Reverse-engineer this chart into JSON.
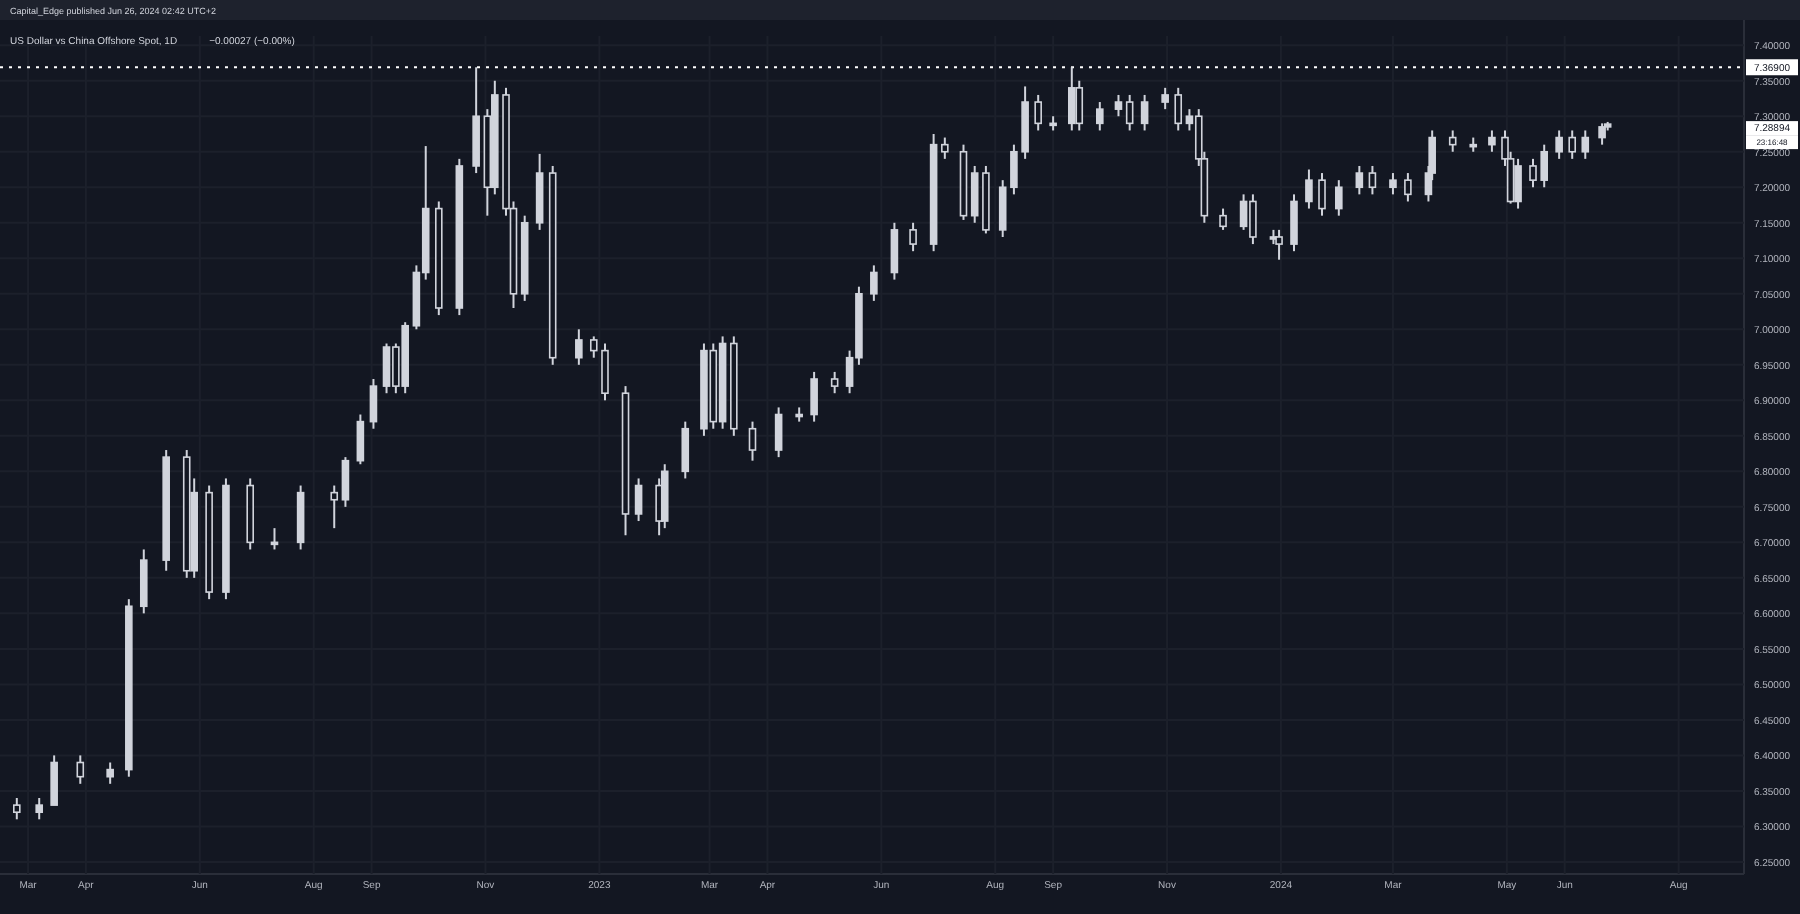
{
  "chart_data": {
    "type": "candlestick",
    "title": "US Dollar vs China Offshore Spot, 1D",
    "subtitle": "−0.00027 (−0.00%)",
    "color": "#d1d4dc",
    "grid": true,
    "annotations": [
      "Capital_Edge published Jun 26, 2024 02:42 UTC+2",
      "7.28894",
      "23:16:48"
    ],
    "ref_lines": [
      {
        "axis": "y",
        "value": 7.369,
        "label": "7.36900",
        "line_style": "dotted",
        "color": "#ffffff"
      }
    ],
    "xlim": [
      "2022-02-14",
      "2024-09-05"
    ],
    "xticks": [
      {
        "value": "2022-03-01",
        "label": "Mar"
      },
      {
        "value": "2022-04-01",
        "label": "Apr"
      },
      {
        "value": "2022-06-01",
        "label": "Jun"
      },
      {
        "value": "2022-08-01",
        "label": "Aug"
      },
      {
        "value": "2022-09-01",
        "label": "Sep"
      },
      {
        "value": "2022-11-01",
        "label": "Nov"
      },
      {
        "value": "2023-01-01",
        "label": "2023"
      },
      {
        "value": "2023-03-01",
        "label": "Mar"
      },
      {
        "value": "2023-04-01",
        "label": "Apr"
      },
      {
        "value": "2023-06-01",
        "label": "Jun"
      },
      {
        "value": "2023-08-01",
        "label": "Aug"
      },
      {
        "value": "2023-09-01",
        "label": "Sep"
      },
      {
        "value": "2023-11-01",
        "label": "Nov"
      },
      {
        "value": "2024-01-01",
        "label": "2024"
      },
      {
        "value": "2024-03-01",
        "label": "Mar"
      },
      {
        "value": "2024-05-01",
        "label": "May"
      },
      {
        "value": "2024-06-01",
        "label": "Jun"
      },
      {
        "value": "2024-08-01",
        "label": "Aug"
      }
    ],
    "ylim": [
      6.233,
      7.413
    ],
    "yticks": [
      {
        "value": 6.25,
        "label": "6.25000"
      },
      {
        "value": 6.3,
        "label": "6.30000"
      },
      {
        "value": 6.35,
        "label": "6.35000"
      },
      {
        "value": 6.4,
        "label": "6.40000"
      },
      {
        "value": 6.45,
        "label": "6.45000"
      },
      {
        "value": 6.5,
        "label": "6.50000"
      },
      {
        "value": 6.55,
        "label": "6.55000"
      },
      {
        "value": 6.6,
        "label": "6.60000"
      },
      {
        "value": 6.65,
        "label": "6.65000"
      },
      {
        "value": 6.7,
        "label": "6.70000"
      },
      {
        "value": 6.75,
        "label": "6.75000"
      },
      {
        "value": 6.8,
        "label": "6.80000"
      },
      {
        "value": 6.85,
        "label": "6.85000"
      },
      {
        "value": 6.9,
        "label": "6.90000"
      },
      {
        "value": 6.95,
        "label": "6.95000"
      },
      {
        "value": 7.0,
        "label": "7.00000"
      },
      {
        "value": 7.05,
        "label": "7.05000"
      },
      {
        "value": 7.1,
        "label": "7.10000"
      },
      {
        "value": 7.15,
        "label": "7.15000"
      },
      {
        "value": 7.2,
        "label": "7.20000"
      },
      {
        "value": 7.25,
        "label": "7.25000"
      },
      {
        "value": 7.3,
        "label": "7.30000"
      },
      {
        "value": 7.35,
        "label": "7.35000"
      },
      {
        "value": 7.4,
        "label": "7.40000"
      }
    ],
    "x": [
      "2022-02-23",
      "2022-03-07",
      "2022-03-15",
      "2022-03-29",
      "2022-04-14",
      "2022-04-24",
      "2022-05-02",
      "2022-05-14",
      "2022-05-25",
      "2022-05-29",
      "2022-06-06",
      "2022-06-15",
      "2022-06-28",
      "2022-07-11",
      "2022-07-25",
      "2022-08-12",
      "2022-08-18",
      "2022-08-26",
      "2022-09-02",
      "2022-09-09",
      "2022-09-14",
      "2022-09-19",
      "2022-09-25",
      "2022-09-30",
      "2022-10-07",
      "2022-10-18",
      "2022-10-27",
      "2022-11-02",
      "2022-11-06",
      "2022-11-12",
      "2022-11-16",
      "2022-11-22",
      "2022-11-30",
      "2022-12-07",
      "2022-12-21",
      "2022-12-29",
      "2023-01-04",
      "2023-01-15",
      "2023-01-22",
      "2023-02-02",
      "2023-02-05",
      "2023-02-16",
      "2023-02-26",
      "2023-03-03",
      "2023-03-08",
      "2023-03-14",
      "2023-03-24",
      "2023-04-07",
      "2023-04-18",
      "2023-04-26",
      "2023-05-07",
      "2023-05-15",
      "2023-05-20",
      "2023-05-28",
      "2023-06-08",
      "2023-06-18",
      "2023-06-29",
      "2023-07-05",
      "2023-07-15",
      "2023-07-21",
      "2023-07-27",
      "2023-08-05",
      "2023-08-11",
      "2023-08-17",
      "2023-08-24",
      "2023-09-01",
      "2023-09-11",
      "2023-09-15",
      "2023-09-26",
      "2023-10-06",
      "2023-10-12",
      "2023-10-20",
      "2023-10-31",
      "2023-11-07",
      "2023-11-13",
      "2023-11-18",
      "2023-11-21",
      "2023-12-01",
      "2023-12-12",
      "2023-12-17",
      "2023-12-28",
      "2023-12-31",
      "2024-01-08",
      "2024-01-16",
      "2024-01-23",
      "2024-02-01",
      "2024-02-12",
      "2024-02-19",
      "2024-03-01",
      "2024-03-09",
      "2024-03-20",
      "2024-03-22",
      "2024-04-02",
      "2024-04-13",
      "2024-04-23",
      "2024-04-30",
      "2024-05-03",
      "2024-05-07",
      "2024-05-15",
      "2024-05-21",
      "2024-05-29",
      "2024-06-05",
      "2024-06-12",
      "2024-06-21",
      "2024-06-24"
    ],
    "ohlc": [
      [
        6.33,
        6.34,
        6.31,
        6.32
      ],
      [
        6.32,
        6.34,
        6.31,
        6.33
      ],
      [
        6.33,
        6.4,
        6.33,
        6.39
      ],
      [
        6.39,
        6.4,
        6.36,
        6.37
      ],
      [
        6.37,
        6.39,
        6.36,
        6.38
      ],
      [
        6.38,
        6.62,
        6.37,
        6.61
      ],
      [
        6.61,
        6.69,
        6.6,
        6.675
      ],
      [
        6.675,
        6.83,
        6.66,
        6.82
      ],
      [
        6.82,
        6.83,
        6.65,
        6.66
      ],
      [
        6.66,
        6.79,
        6.65,
        6.77
      ],
      [
        6.77,
        6.78,
        6.62,
        6.63
      ],
      [
        6.63,
        6.79,
        6.62,
        6.78
      ],
      [
        6.78,
        6.79,
        6.69,
        6.7
      ],
      [
        6.7,
        6.72,
        6.69,
        6.7
      ],
      [
        6.7,
        6.78,
        6.69,
        6.77
      ],
      [
        6.77,
        6.78,
        6.72,
        6.76
      ],
      [
        6.76,
        6.82,
        6.75,
        6.815
      ],
      [
        6.815,
        6.88,
        6.81,
        6.87
      ],
      [
        6.87,
        6.93,
        6.86,
        6.92
      ],
      [
        6.92,
        6.98,
        6.91,
        6.975
      ],
      [
        6.975,
        6.98,
        6.91,
        6.92
      ],
      [
        6.92,
        7.01,
        6.91,
        7.005
      ],
      [
        7.005,
        7.09,
        7.0,
        7.08
      ],
      [
        7.08,
        7.258,
        7.07,
        7.17
      ],
      [
        7.17,
        7.18,
        7.02,
        7.03
      ],
      [
        7.03,
        7.24,
        7.02,
        7.23
      ],
      [
        7.23,
        7.369,
        7.22,
        7.3
      ],
      [
        7.3,
        7.31,
        7.16,
        7.2
      ],
      [
        7.2,
        7.35,
        7.19,
        7.33
      ],
      [
        7.33,
        7.34,
        7.16,
        7.17
      ],
      [
        7.17,
        7.18,
        7.03,
        7.05
      ],
      [
        7.05,
        7.16,
        7.04,
        7.15
      ],
      [
        7.15,
        7.247,
        7.14,
        7.22
      ],
      [
        7.22,
        7.23,
        6.95,
        6.96
      ],
      [
        6.96,
        7.0,
        6.95,
        6.985
      ],
      [
        6.985,
        6.99,
        6.96,
        6.97
      ],
      [
        6.97,
        6.98,
        6.9,
        6.91
      ],
      [
        6.91,
        6.92,
        6.71,
        6.74
      ],
      [
        6.74,
        6.79,
        6.73,
        6.78
      ],
      [
        6.78,
        6.79,
        6.71,
        6.73
      ],
      [
        6.73,
        6.81,
        6.72,
        6.8
      ],
      [
        6.8,
        6.87,
        6.79,
        6.86
      ],
      [
        6.86,
        6.98,
        6.85,
        6.97
      ],
      [
        6.97,
        6.98,
        6.86,
        6.87
      ],
      [
        6.87,
        6.99,
        6.86,
        6.98
      ],
      [
        6.98,
        6.99,
        6.85,
        6.86
      ],
      [
        6.86,
        6.87,
        6.815,
        6.83
      ],
      [
        6.83,
        6.89,
        6.82,
        6.88
      ],
      [
        6.88,
        6.89,
        6.87,
        6.88
      ],
      [
        6.88,
        6.94,
        6.87,
        6.93
      ],
      [
        6.93,
        6.94,
        6.91,
        6.92
      ],
      [
        6.92,
        6.97,
        6.91,
        6.96
      ],
      [
        6.96,
        7.06,
        6.95,
        7.05
      ],
      [
        7.05,
        7.09,
        7.04,
        7.08
      ],
      [
        7.08,
        7.15,
        7.07,
        7.14
      ],
      [
        7.14,
        7.15,
        7.11,
        7.12
      ],
      [
        7.12,
        7.275,
        7.11,
        7.26
      ],
      [
        7.26,
        7.27,
        7.24,
        7.25
      ],
      [
        7.25,
        7.26,
        7.154,
        7.16
      ],
      [
        7.16,
        7.23,
        7.15,
        7.22
      ],
      [
        7.22,
        7.23,
        7.135,
        7.14
      ],
      [
        7.14,
        7.21,
        7.13,
        7.2
      ],
      [
        7.2,
        7.26,
        7.19,
        7.25
      ],
      [
        7.25,
        7.342,
        7.24,
        7.32
      ],
      [
        7.32,
        7.33,
        7.28,
        7.29
      ],
      [
        7.29,
        7.3,
        7.28,
        7.29
      ],
      [
        7.29,
        7.369,
        7.28,
        7.34
      ],
      [
        7.34,
        7.35,
        7.28,
        7.29
      ],
      [
        7.29,
        7.32,
        7.28,
        7.31
      ],
      [
        7.31,
        7.33,
        7.3,
        7.32
      ],
      [
        7.32,
        7.33,
        7.28,
        7.29
      ],
      [
        7.29,
        7.33,
        7.28,
        7.32
      ],
      [
        7.32,
        7.34,
        7.31,
        7.33
      ],
      [
        7.33,
        7.34,
        7.28,
        7.29
      ],
      [
        7.29,
        7.31,
        7.28,
        7.3
      ],
      [
        7.3,
        7.31,
        7.23,
        7.24
      ],
      [
        7.24,
        7.25,
        7.15,
        7.16
      ],
      [
        7.16,
        7.17,
        7.14,
        7.145
      ],
      [
        7.145,
        7.19,
        7.14,
        7.18
      ],
      [
        7.18,
        7.19,
        7.12,
        7.13
      ],
      [
        7.13,
        7.14,
        7.12,
        7.13
      ],
      [
        7.13,
        7.14,
        7.098,
        7.12
      ],
      [
        7.12,
        7.19,
        7.11,
        7.18
      ],
      [
        7.18,
        7.225,
        7.17,
        7.21
      ],
      [
        7.21,
        7.22,
        7.16,
        7.17
      ],
      [
        7.17,
        7.21,
        7.16,
        7.2
      ],
      [
        7.2,
        7.23,
        7.19,
        7.22
      ],
      [
        7.22,
        7.23,
        7.19,
        7.2
      ],
      [
        7.2,
        7.22,
        7.19,
        7.21
      ],
      [
        7.21,
        7.22,
        7.18,
        7.19
      ],
      [
        7.19,
        7.23,
        7.18,
        7.22
      ],
      [
        7.22,
        7.28,
        7.21,
        7.27
      ],
      [
        7.27,
        7.28,
        7.25,
        7.26
      ],
      [
        7.26,
        7.27,
        7.25,
        7.26
      ],
      [
        7.26,
        7.28,
        7.25,
        7.27
      ],
      [
        7.27,
        7.28,
        7.23,
        7.24
      ],
      [
        7.24,
        7.25,
        7.177,
        7.18
      ],
      [
        7.18,
        7.24,
        7.17,
        7.23
      ],
      [
        7.23,
        7.24,
        7.2,
        7.21
      ],
      [
        7.21,
        7.26,
        7.2,
        7.25
      ],
      [
        7.25,
        7.28,
        7.24,
        7.27
      ],
      [
        7.27,
        7.28,
        7.24,
        7.25
      ],
      [
        7.25,
        7.28,
        7.24,
        7.27
      ],
      [
        7.27,
        7.29,
        7.26,
        7.285
      ],
      [
        7.285,
        7.292,
        7.28,
        7.28894
      ]
    ]
  }
}
